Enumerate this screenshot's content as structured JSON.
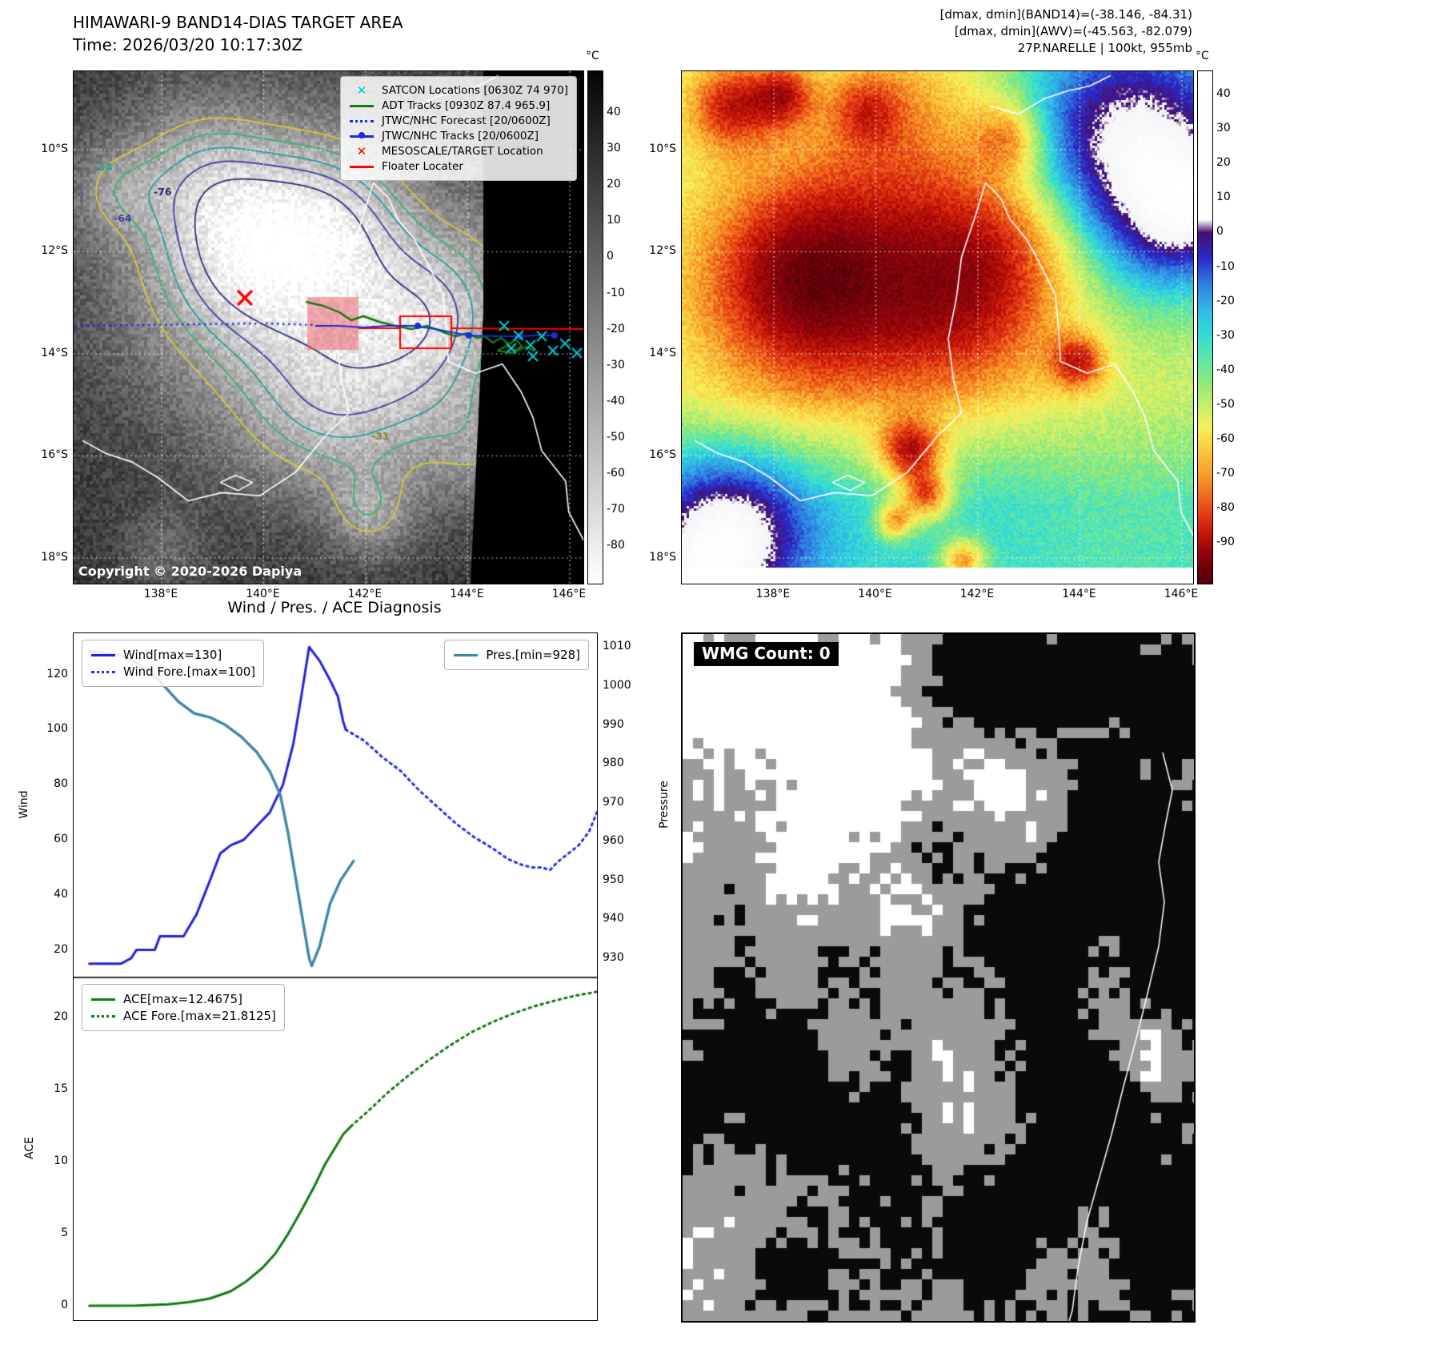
{
  "panel1": {
    "title": "HIMAWARI-9 BAND14-DIAS TARGET AREA",
    "time_label": "Time: 2026/03/20 10:17:30Z",
    "copyright": "Copyright © 2020-2026 Dapiya",
    "colorbar_unit": "°C",
    "colorbar_ticks": [
      "40",
      "30",
      "20",
      "10",
      "0",
      "-10",
      "-20",
      "-30",
      "-40",
      "-50",
      "-60",
      "-70",
      "-80"
    ],
    "x_ticks": [
      "138°E",
      "140°E",
      "142°E",
      "144°E",
      "146°E"
    ],
    "y_ticks": [
      "10°S",
      "12°S",
      "14°S",
      "16°S",
      "18°S"
    ],
    "legend": [
      {
        "label": "SATCON Locations [0630Z 74 970]",
        "marker": "x",
        "color": "#00c5cd"
      },
      {
        "label": "ADT Tracks [0930Z 87.4 965.9]",
        "marker": "line",
        "color": "#117a11"
      },
      {
        "label": "JTWC/NHC Forecast [20/0600Z]",
        "marker": "dotted",
        "color": "#2430e0"
      },
      {
        "label": "JTWC/NHC Tracks [20/0600Z]",
        "marker": "line-dot",
        "color": "#1c2cd6"
      },
      {
        "label": "MESOSCALE/TARGET Location",
        "marker": "x",
        "color": "#ff0000"
      },
      {
        "label": "Floater Locater",
        "marker": "line",
        "color": "#ff0000"
      }
    ],
    "contour_labels": [
      {
        "text": "-54",
        "color": "#2a9d9d"
      },
      {
        "text": "-76",
        "color": "#2e2e78"
      },
      {
        "text": "-64",
        "color": "#3f3fa0"
      },
      {
        "text": "-31",
        "color": "#8a8a2a"
      }
    ]
  },
  "panel2": {
    "annotations": [
      "[dmax, dmin](BAND14)=(-38.146, -84.31)",
      "[dmax, dmin](AWV)=(-45.563, -82.079)",
      "27P.NARELLE | 100kt, 955mb"
    ],
    "colorbar_unit": "°C",
    "colorbar_ticks": [
      "40",
      "30",
      "20",
      "10",
      "0",
      "-10",
      "-20",
      "-30",
      "-40",
      "-50",
      "-60",
      "-70",
      "-80",
      "-90"
    ],
    "x_ticks": [
      "138°E",
      "140°E",
      "142°E",
      "144°E",
      "146°E"
    ],
    "y_ticks": [
      "10°S",
      "12°S",
      "14°S",
      "16°S",
      "18°S"
    ]
  },
  "panel3": {
    "title": "Wind / Pres. / ACE Diagnosis",
    "wind_axis_label": "Wind",
    "pressure_axis_label": "Pressure",
    "ace_axis_label": "ACE",
    "wind_ticks": [
      "120",
      "100",
      "80",
      "60",
      "40",
      "20"
    ],
    "pressure_ticks": [
      "1010",
      "1000",
      "990",
      "980",
      "970",
      "960",
      "950",
      "940",
      "930"
    ],
    "ace_ticks": [
      "20",
      "15",
      "10",
      "5",
      "0"
    ]
  },
  "panel4": {
    "wmg_label": "WMG Count: 0"
  },
  "chart_data": [
    {
      "type": "line",
      "title": "Wind / Pres. / ACE Diagnosis",
      "ylabel": "Wind",
      "y2label": "Pressure",
      "ylim": [
        10,
        135
      ],
      "y2lim": [
        925,
        1013.6
      ],
      "grid": false,
      "series": [
        {
          "name": "Wind[max=130]",
          "axis": "left",
          "style": "solid",
          "color": "#2222dd",
          "points": [
            [
              0.03,
              15
            ],
            [
              0.09,
              15
            ],
            [
              0.11,
              17
            ],
            [
              0.12,
              20
            ],
            [
              0.155,
              20
            ],
            [
              0.165,
              25
            ],
            [
              0.21,
              25
            ],
            [
              0.235,
              33
            ],
            [
              0.26,
              45
            ],
            [
              0.28,
              55
            ],
            [
              0.3,
              58
            ],
            [
              0.325,
              60
            ],
            [
              0.35,
              65
            ],
            [
              0.375,
              70
            ],
            [
              0.4,
              80
            ],
            [
              0.42,
              95
            ],
            [
              0.435,
              112
            ],
            [
              0.45,
              130
            ],
            [
              0.47,
              125
            ],
            [
              0.49,
              118
            ],
            [
              0.505,
              112
            ],
            [
              0.515,
              103
            ],
            [
              0.52,
              100
            ]
          ]
        },
        {
          "name": "Wind Fore.[max=100]",
          "axis": "left",
          "style": "dotted",
          "color": "#2430e0",
          "points": [
            [
              0.52,
              100
            ],
            [
              0.555,
              96
            ],
            [
              0.59,
              90
            ],
            [
              0.625,
              85
            ],
            [
              0.66,
              78
            ],
            [
              0.695,
              72
            ],
            [
              0.73,
              66
            ],
            [
              0.765,
              61
            ],
            [
              0.8,
              57
            ],
            [
              0.83,
              53
            ],
            [
              0.855,
              51
            ],
            [
              0.875,
              50
            ],
            [
              0.895,
              50
            ],
            [
              0.91,
              49
            ],
            [
              0.925,
              52
            ],
            [
              0.945,
              55
            ],
            [
              0.965,
              58
            ],
            [
              0.985,
              63
            ],
            [
              1.0,
              70
            ]
          ]
        },
        {
          "name": "Pres.[min=928]",
          "axis": "right",
          "style": "solid",
          "color": "#3e86ad",
          "points": [
            [
              0.03,
              1009
            ],
            [
              0.09,
              1008
            ],
            [
              0.12,
              1006
            ],
            [
              0.16,
              1002
            ],
            [
              0.2,
              996
            ],
            [
              0.23,
              993
            ],
            [
              0.26,
              992
            ],
            [
              0.29,
              990
            ],
            [
              0.32,
              987
            ],
            [
              0.35,
              983
            ],
            [
              0.375,
              978
            ],
            [
              0.395,
              972
            ],
            [
              0.41,
              962
            ],
            [
              0.425,
              950
            ],
            [
              0.44,
              938
            ],
            [
              0.45,
              930
            ],
            [
              0.455,
              928
            ],
            [
              0.47,
              933
            ],
            [
              0.49,
              944
            ],
            [
              0.51,
              950
            ],
            [
              0.525,
              953
            ],
            [
              0.535,
              955
            ]
          ]
        }
      ]
    },
    {
      "type": "line",
      "ylabel": "ACE",
      "ylim": [
        -1,
        22.8
      ],
      "grid": false,
      "series": [
        {
          "name": "ACE[max=12.4675]",
          "axis": "left",
          "style": "solid",
          "color": "#0d7d0d",
          "points": [
            [
              0.03,
              0
            ],
            [
              0.12,
              0.02
            ],
            [
              0.18,
              0.1
            ],
            [
              0.22,
              0.25
            ],
            [
              0.26,
              0.5
            ],
            [
              0.3,
              1.0
            ],
            [
              0.33,
              1.7
            ],
            [
              0.36,
              2.6
            ],
            [
              0.385,
              3.6
            ],
            [
              0.41,
              5.0
            ],
            [
              0.435,
              6.6
            ],
            [
              0.46,
              8.3
            ],
            [
              0.48,
              9.8
            ],
            [
              0.5,
              11.0
            ],
            [
              0.515,
              11.9
            ],
            [
              0.53,
              12.4675
            ]
          ]
        },
        {
          "name": "ACE Fore.[max=21.8125]",
          "axis": "left",
          "style": "dotted",
          "color": "#0d7d0d",
          "points": [
            [
              0.53,
              12.4675
            ],
            [
              0.565,
              13.6
            ],
            [
              0.6,
              14.8
            ],
            [
              0.64,
              16.0
            ],
            [
              0.68,
              17.1
            ],
            [
              0.72,
              18.1
            ],
            [
              0.76,
              19.0
            ],
            [
              0.8,
              19.7
            ],
            [
              0.84,
              20.3
            ],
            [
              0.88,
              20.8
            ],
            [
              0.92,
              21.2
            ],
            [
              0.96,
              21.55
            ],
            [
              1.0,
              21.8125
            ]
          ]
        }
      ]
    }
  ]
}
